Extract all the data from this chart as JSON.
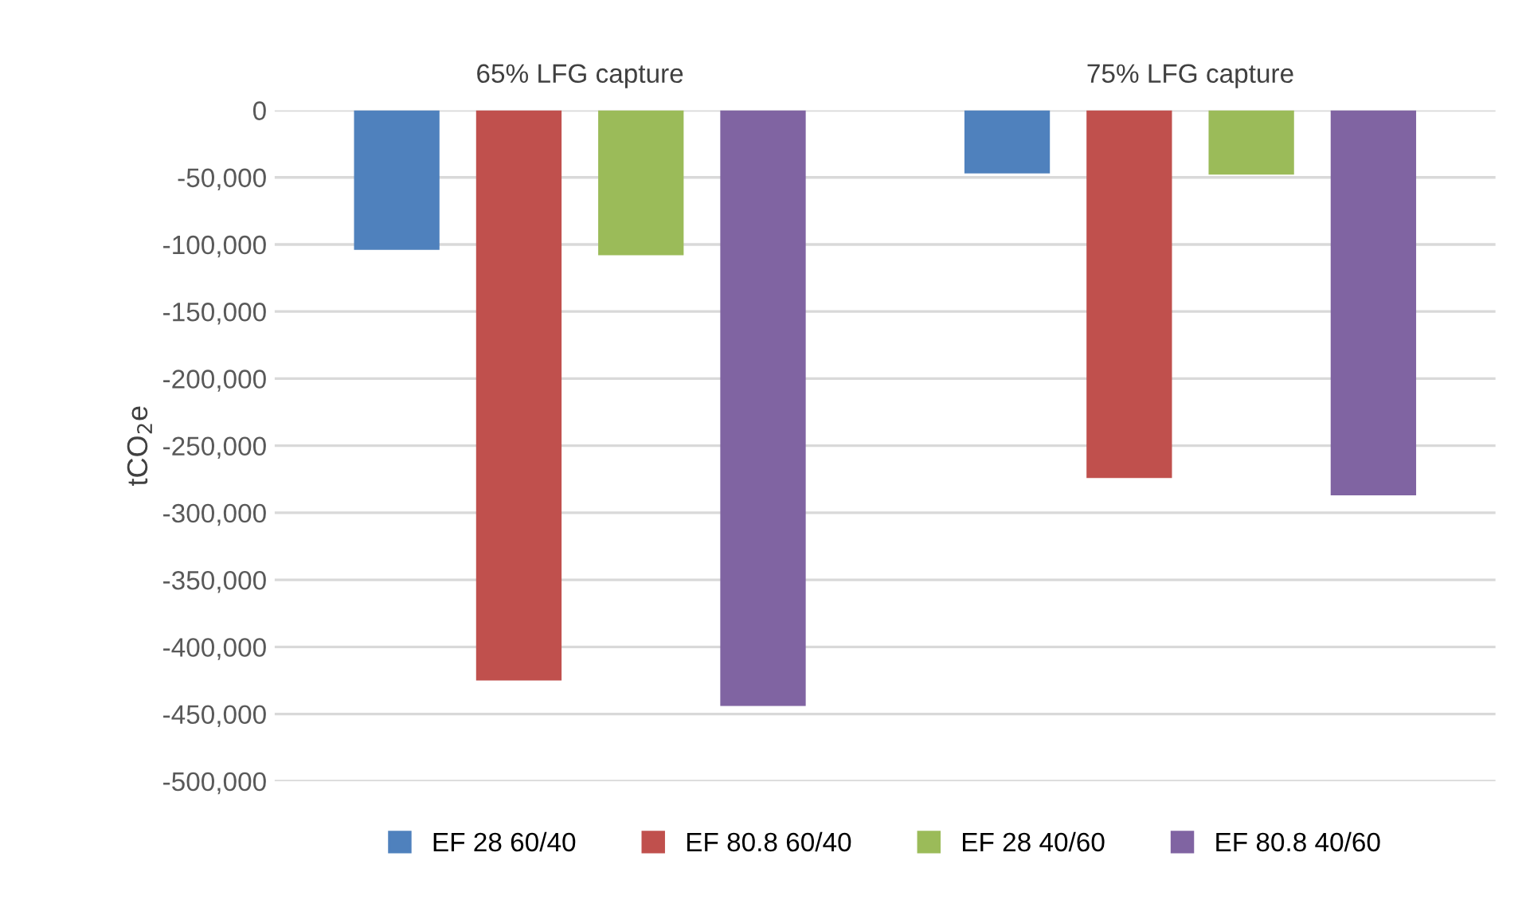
{
  "chart_data": {
    "type": "bar",
    "ylabel": "tCO$_{2}$e",
    "categories": [
      "65% LFG capture",
      "75% LFG capture"
    ],
    "series": [
      {
        "name": "EF 28 60/40",
        "color": "#4f81bd",
        "values": [
          -104000,
          -47000
        ]
      },
      {
        "name": "EF 80.8 60/40",
        "color": "#c0504d",
        "values": [
          -425000,
          -274000
        ]
      },
      {
        "name": "EF 28 40/60",
        "color": "#9bbb59",
        "values": [
          -108000,
          -48000
        ]
      },
      {
        "name": "EF 80.8 40/60",
        "color": "#8064a2",
        "values": [
          -444000,
          -287000
        ]
      }
    ],
    "ylim": [
      -500000,
      0
    ],
    "yticks": [
      {
        "value": -500000,
        "label": "-500,000"
      },
      {
        "value": -450000,
        "label": "-450,000"
      },
      {
        "value": -400000,
        "label": "-400,000"
      },
      {
        "value": -350000,
        "label": "-350,000"
      },
      {
        "value": -300000,
        "label": "-300,000"
      },
      {
        "value": -250000,
        "label": "-250,000"
      },
      {
        "value": -200000,
        "label": "-200,000"
      },
      {
        "value": -150000,
        "label": "-150,000"
      },
      {
        "value": -100000,
        "label": "-100,000"
      },
      {
        "value": -50000,
        "label": "-50,000"
      },
      0
    ],
    "grid": "y",
    "legend": "bottom"
  }
}
